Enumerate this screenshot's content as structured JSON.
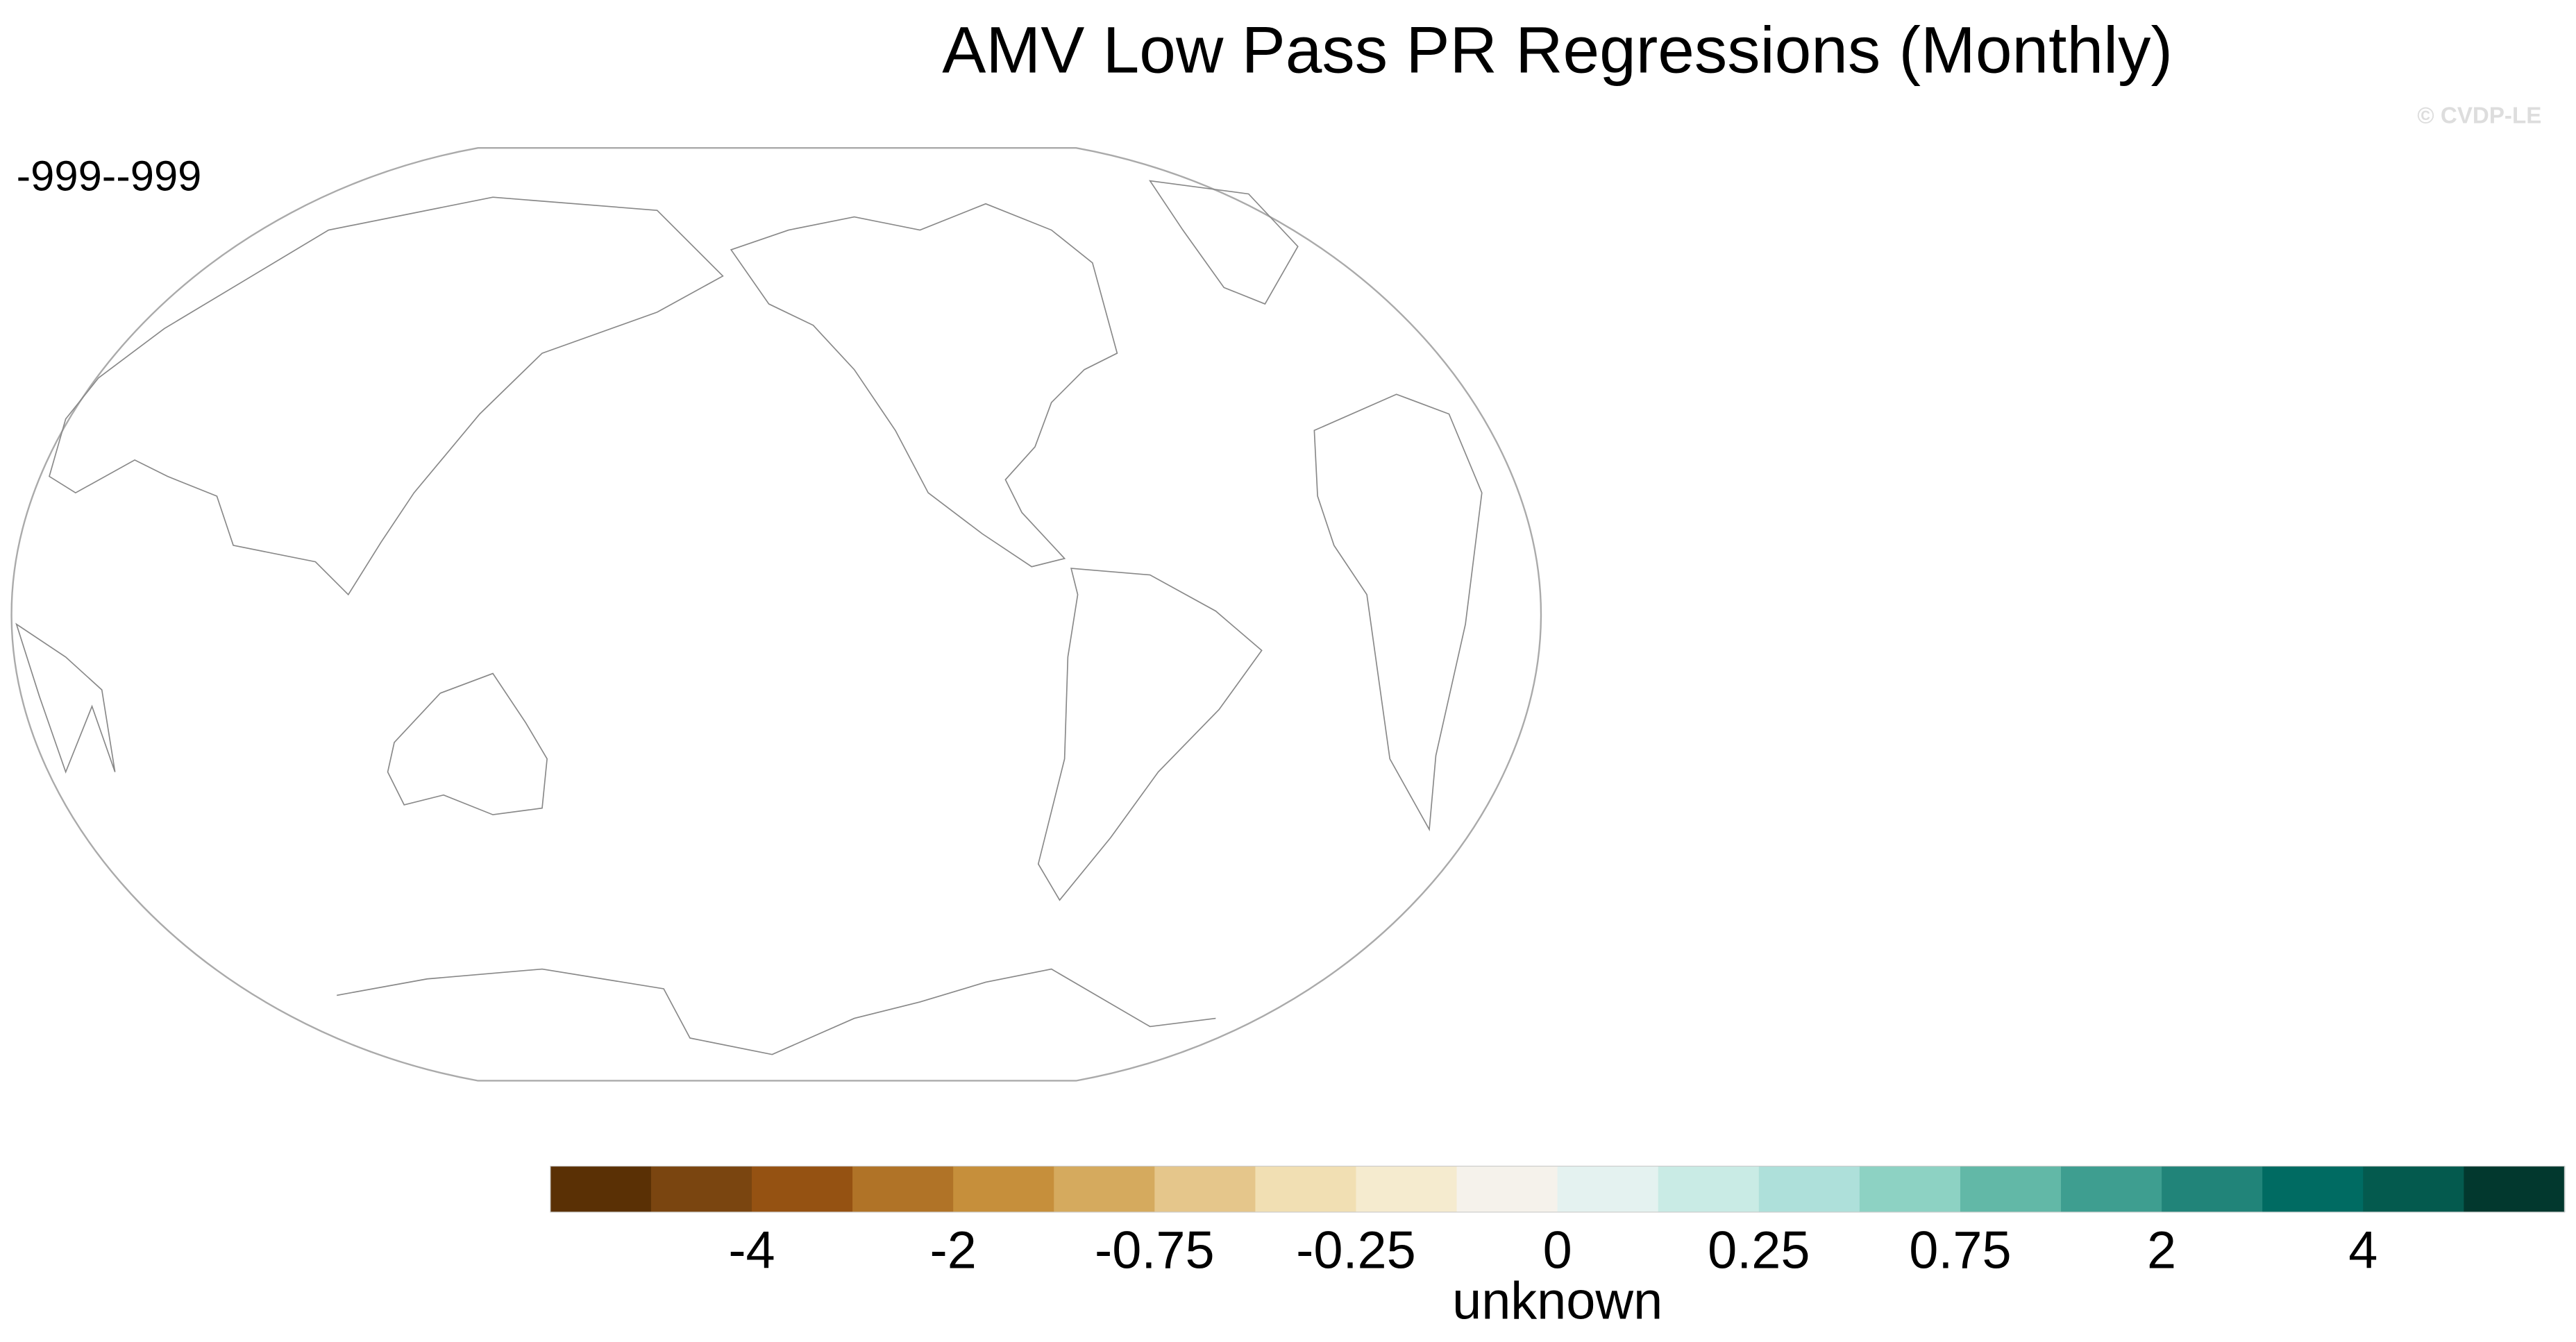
{
  "header": {
    "title": "AMV Low Pass PR Regressions (Monthly)",
    "subtitle": "-999--999",
    "watermark": "© CVDP-LE"
  },
  "colorbar": {
    "colors": [
      "#5a3005",
      "#7a4510",
      "#955212",
      "#b07327",
      "#c68f3b",
      "#d5aa5e",
      "#e5c68b",
      "#f1dfb3",
      "#f5ebcf",
      "#f5f2eb",
      "#e4f2f0",
      "#c9ebe5",
      "#aee0da",
      "#8dd2c3",
      "#62b8a7",
      "#3e9e90",
      "#218479",
      "#006b62",
      "#045a4e",
      "#02382e"
    ],
    "labels": [
      null,
      -4,
      null,
      -2,
      null,
      -0.75,
      null,
      -0.25,
      null,
      0,
      null,
      0.25,
      null,
      0.75,
      null,
      2,
      null,
      4,
      null
    ],
    "title": "unknown"
  }
}
